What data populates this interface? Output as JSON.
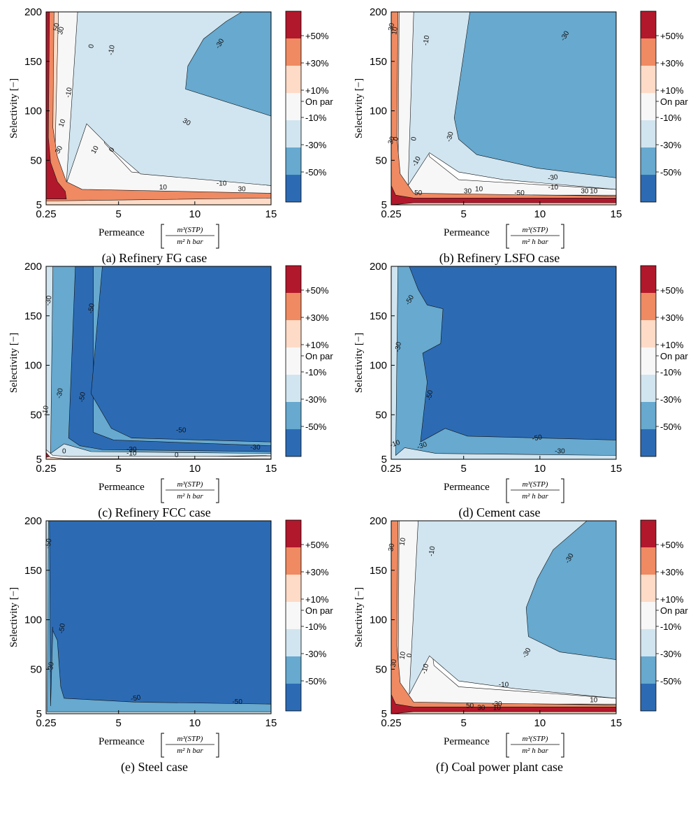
{
  "figure": {
    "axis_label_y": "Selectivity [−]",
    "axis_label_x": "Permeance",
    "unit_numerator": "m³(STP)",
    "unit_denominator": "m² h bar",
    "colorbar_labels": [
      "+50%",
      "+30%",
      "+10%",
      "On par",
      "-10%",
      "-30%",
      "-50%"
    ],
    "band_colors": {
      "p50": "#b2182b",
      "p30": "#ef8a62",
      "p10": "#fddbc7",
      "par": "#f7f7f7",
      "m10": "#d1e5f0",
      "m30": "#67a9cf",
      "m50": "#2c6bb4"
    }
  },
  "chart_data": [
    {
      "type": "heatmap",
      "caption": "(a)  Refinery FG case",
      "xlabel": "Permeance",
      "ylabel": "Selectivity [−]",
      "xlim": [
        0.25,
        15
      ],
      "ylim": [
        5,
        200
      ],
      "xticks": [
        "0.25",
        "5",
        "10",
        "15"
      ],
      "yticks": [
        "5",
        "50",
        "100",
        "150",
        "200"
      ],
      "contour_labels": [
        "50",
        "30",
        "10",
        "0",
        "-10",
        "-30",
        "30",
        "10",
        "0",
        "-10",
        "30",
        "10",
        "30",
        "-10"
      ],
      "regions": [
        "+50%",
        "+30%",
        "+10%",
        "On par",
        "-10%",
        "-30%"
      ]
    },
    {
      "type": "heatmap",
      "caption": "(b)  Refinery LSFO case",
      "xlabel": "Permeance",
      "ylabel": "Selectivity [−]",
      "xlim": [
        0.25,
        15
      ],
      "ylim": [
        5,
        200
      ],
      "xticks": [
        "0.25",
        "5",
        "10",
        "15"
      ],
      "yticks": [
        "5",
        "50",
        "100",
        "150",
        "200"
      ],
      "contour_labels": [
        "30",
        "10",
        "0",
        "-10",
        "-30",
        "-30",
        "30",
        "0",
        "-10",
        "-30",
        "50",
        "30",
        "10",
        "-10",
        "-50",
        "30",
        "10"
      ],
      "regions": [
        "+50%",
        "+30%",
        "+10%",
        "On par",
        "-10%",
        "-30%"
      ]
    },
    {
      "type": "heatmap",
      "caption": "(c)  Refinery FCC case",
      "xlabel": "Permeance",
      "ylabel": "Selectivity [−]",
      "xlim": [
        0.25,
        15
      ],
      "ylim": [
        5,
        200
      ],
      "xticks": [
        "0.25",
        "5",
        "10",
        "15"
      ],
      "yticks": [
        "5",
        "50",
        "100",
        "150",
        "200"
      ],
      "contour_labels": [
        "-30",
        "-50",
        "-30",
        "-50",
        "-10",
        "-50",
        "-30",
        "-10",
        "-30",
        "0",
        "0"
      ],
      "regions": [
        "+50%",
        "+30%",
        "+10%",
        "On par",
        "-10%",
        "-30%",
        "-50%"
      ]
    },
    {
      "type": "heatmap",
      "caption": "(d)  Cement case",
      "xlabel": "Permeance",
      "ylabel": "Selectivity [−]",
      "xlim": [
        0.25,
        15
      ],
      "ylim": [
        5,
        200
      ],
      "xticks": [
        "0.25",
        "5",
        "10",
        "15"
      ],
      "yticks": [
        "5",
        "50",
        "100",
        "150",
        "200"
      ],
      "contour_labels": [
        "-50",
        "-30",
        "-50",
        "-10",
        "-30",
        "-50",
        "-30"
      ],
      "regions": [
        "-10%",
        "-30%",
        "-50%"
      ]
    },
    {
      "type": "heatmap",
      "caption": "(e)  Steel case",
      "xlabel": "Permeance",
      "ylabel": "Selectivity [−]",
      "xlim": [
        0.25,
        15
      ],
      "ylim": [
        5,
        200
      ],
      "xticks": [
        "0.25",
        "5",
        "10",
        "15"
      ],
      "yticks": [
        "5",
        "50",
        "100",
        "150",
        "200"
      ],
      "contour_labels": [
        "-50",
        "-50",
        "-30",
        "-50",
        "-50"
      ],
      "regions": [
        "-10%",
        "-30%",
        "-50%"
      ]
    },
    {
      "type": "heatmap",
      "caption": "(f)  Coal power plant case",
      "xlabel": "Permeance",
      "ylabel": "Selectivity [−]",
      "xlim": [
        0.25,
        15
      ],
      "ylim": [
        5,
        200
      ],
      "xticks": [
        "0.25",
        "5",
        "10",
        "15"
      ],
      "yticks": [
        "5",
        "50",
        "100",
        "150",
        "200"
      ],
      "contour_labels": [
        "30",
        "10",
        "-10",
        "-30",
        "30",
        "10",
        "0",
        "-10",
        "-30",
        "-10",
        "10",
        "-30",
        "50",
        "30",
        "10"
      ],
      "regions": [
        "+50%",
        "+30%",
        "+10%",
        "On par",
        "-10%",
        "-30%"
      ]
    }
  ]
}
